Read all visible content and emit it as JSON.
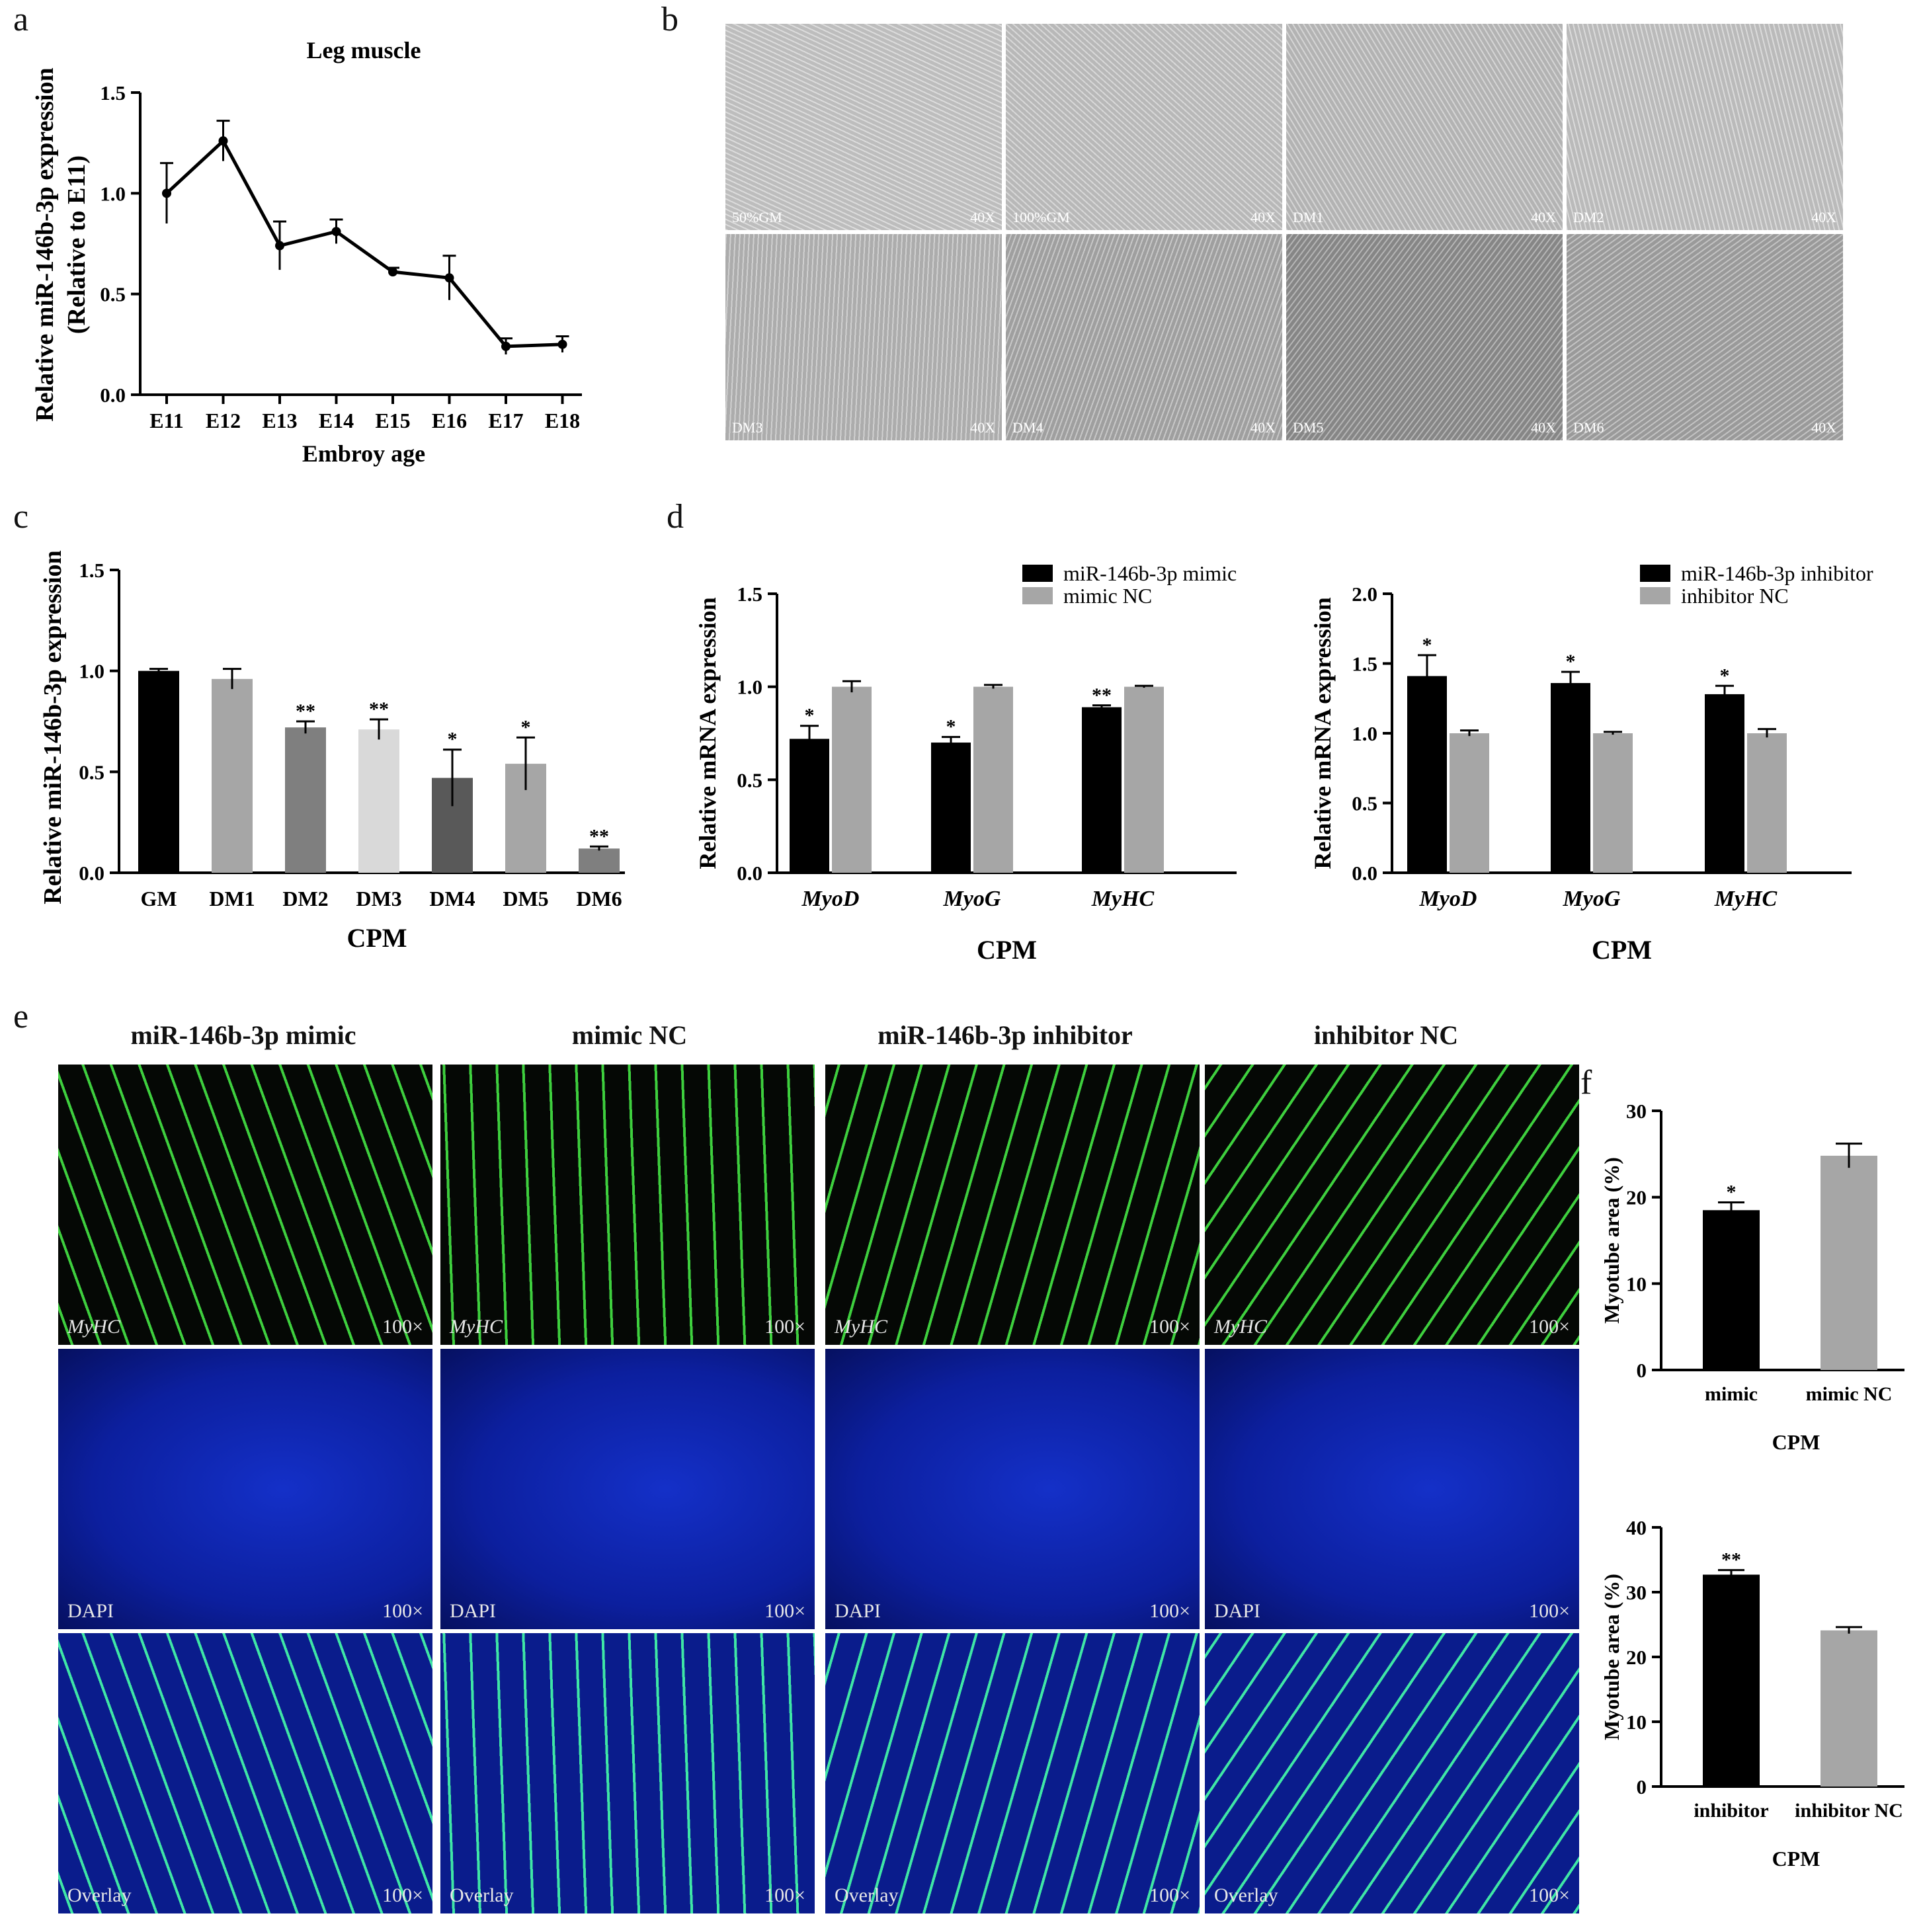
{
  "panel_labels": [
    "a",
    "b",
    "c",
    "d",
    "e",
    "f"
  ],
  "chart_data": [
    {
      "id": "a",
      "type": "line",
      "title": "Leg muscle",
      "xlabel": "Embroy age",
      "ylabel_lines": [
        "Relative miR-146b-3p expression",
        "(Relative to E11)"
      ],
      "categories": [
        "E11",
        "E12",
        "E13",
        "E14",
        "E15",
        "E16",
        "E17",
        "E18"
      ],
      "values": [
        1.0,
        1.26,
        0.74,
        0.81,
        0.61,
        0.58,
        0.24,
        0.25
      ],
      "errors": [
        0.15,
        0.1,
        0.12,
        0.06,
        0.02,
        0.11,
        0.04,
        0.04
      ],
      "ylim": [
        0,
        1.5
      ],
      "yticks": [
        "0.0",
        "0.5",
        "1.0",
        "1.5"
      ],
      "grid": false
    },
    {
      "id": "c",
      "type": "bar",
      "xlabel": "CPM",
      "ylabel": "Relative miR-146b-3p expression",
      "categories": [
        "GM",
        "DM1",
        "DM2",
        "DM3",
        "DM4",
        "DM5",
        "DM6"
      ],
      "values": [
        1.0,
        0.96,
        0.72,
        0.71,
        0.47,
        0.54,
        0.12
      ],
      "errors": [
        0.01,
        0.05,
        0.03,
        0.05,
        0.14,
        0.13,
        0.01
      ],
      "significance": [
        "",
        "",
        "**",
        "**",
        "*",
        "*",
        "**"
      ],
      "colors": [
        "#000000",
        "#a6a6a6",
        "#7f7f7f",
        "#d9d9d9",
        "#595959",
        "#a6a6a6",
        "#7f7f7f"
      ],
      "ylim": [
        0,
        1.5
      ],
      "yticks": [
        "0.0",
        "0.5",
        "1.0",
        "1.5"
      ],
      "grid": false
    },
    {
      "id": "d1",
      "type": "bar",
      "xlabel": "CPM",
      "ylabel": "Relative mRNA expression",
      "categories": [
        "MyoD",
        "MyoG",
        "MyHC"
      ],
      "series": [
        {
          "name": "miR-146b-3p mimic",
          "color": "#000000",
          "values": [
            0.72,
            0.7,
            0.89
          ],
          "errors": [
            0.07,
            0.03,
            0.01
          ],
          "significance": [
            "*",
            "*",
            "**"
          ]
        },
        {
          "name": "mimic NC",
          "color": "#a6a6a6",
          "values": [
            1.0,
            1.0,
            1.0
          ],
          "errors": [
            0.03,
            0.01,
            0.005
          ],
          "significance": [
            "",
            "",
            ""
          ]
        }
      ],
      "ylim": [
        0,
        1.5
      ],
      "yticks": [
        "0.0",
        "0.5",
        "1.0",
        "1.5"
      ],
      "legend": "top-right",
      "grid": false
    },
    {
      "id": "d2",
      "type": "bar",
      "xlabel": "CPM",
      "ylabel": "Relative mRNA expression",
      "categories": [
        "MyoD",
        "MyoG",
        "MyHC"
      ],
      "series": [
        {
          "name": "miR-146b-3p inhibitor",
          "color": "#000000",
          "values": [
            1.41,
            1.36,
            1.28
          ],
          "errors": [
            0.15,
            0.08,
            0.06
          ],
          "significance": [
            "*",
            "*",
            "*"
          ]
        },
        {
          "name": "inhibitor NC",
          "color": "#a6a6a6",
          "values": [
            1.0,
            1.0,
            1.0
          ],
          "errors": [
            0.02,
            0.01,
            0.03
          ],
          "significance": [
            "",
            "",
            ""
          ]
        }
      ],
      "ylim": [
        0,
        2.0
      ],
      "yticks": [
        "0.0",
        "0.5",
        "1.0",
        "1.5",
        "2.0"
      ],
      "legend": "top-right",
      "grid": false
    },
    {
      "id": "f1",
      "type": "bar",
      "xlabel": "CPM",
      "ylabel": "Myotube area (%)",
      "categories": [
        "mimic",
        "mimic NC"
      ],
      "values": [
        18.5,
        24.8
      ],
      "errors": [
        0.9,
        1.4
      ],
      "significance": [
        "*",
        ""
      ],
      "colors": [
        "#000000",
        "#a6a6a6"
      ],
      "ylim": [
        0,
        30
      ],
      "yticks": [
        "0",
        "10",
        "20",
        "30"
      ],
      "grid": false
    },
    {
      "id": "f2",
      "type": "bar",
      "xlabel": "CPM",
      "ylabel": "Myotube area (%)",
      "categories": [
        "inhibitor",
        "inhibitor NC"
      ],
      "values": [
        32.7,
        24.1
      ],
      "errors": [
        0.7,
        0.5
      ],
      "significance": [
        "**",
        ""
      ],
      "colors": [
        "#000000",
        "#a6a6a6"
      ],
      "ylim": [
        0,
        40
      ],
      "yticks": [
        "0",
        "10",
        "20",
        "30",
        "40"
      ],
      "grid": false
    }
  ],
  "images_b": [
    {
      "left": "50%GM",
      "right": "40X"
    },
    {
      "left": "100%GM",
      "right": "40X"
    },
    {
      "left": "DM1",
      "right": "40X"
    },
    {
      "left": "DM2",
      "right": "40X"
    },
    {
      "left": "DM3",
      "right": "40X"
    },
    {
      "left": "DM4",
      "right": "40X"
    },
    {
      "left": "DM5",
      "right": "40X"
    },
    {
      "left": "DM6",
      "right": "40X"
    }
  ],
  "images_e": {
    "columns": [
      "miR-146b-3p mimic",
      "mimic NC",
      "miR-146b-3p inhibitor",
      "inhibitor NC"
    ],
    "rows": [
      {
        "label": "MyHC",
        "magnification": "100×"
      },
      {
        "label": "DAPI",
        "magnification": "100×"
      },
      {
        "label": "Overlay",
        "magnification": "100×"
      }
    ],
    "colors": {
      "myhc": "#3ecf3e",
      "dapi": "#0c1f9e",
      "overlay_bg": "#0a1c8c",
      "overlay_fiber": "#3fe6a6"
    }
  }
}
